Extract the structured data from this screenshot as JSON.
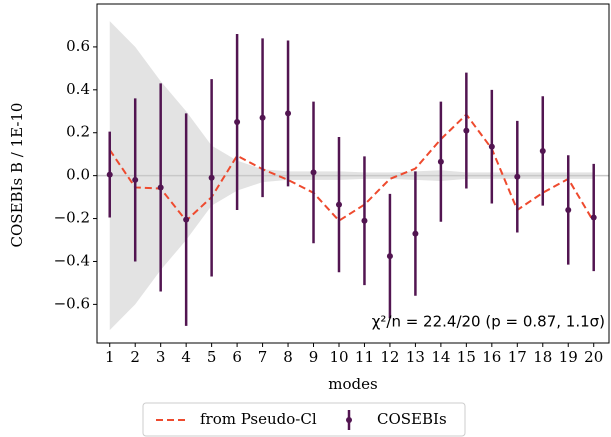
{
  "chart_data": {
    "type": "errorbar",
    "xlabel": "modes",
    "ylabel": "COSEBIs B / 1E-10",
    "annotation": "χ²/n = 22.4/20 (p = 0.87, 1.1σ)",
    "x": [
      1,
      2,
      3,
      4,
      5,
      6,
      7,
      8,
      9,
      10,
      11,
      12,
      13,
      14,
      15,
      16,
      17,
      18,
      19,
      20
    ],
    "xlim": [
      0.5,
      20.6
    ],
    "xticks": [
      1,
      2,
      3,
      4,
      5,
      6,
      7,
      8,
      9,
      10,
      11,
      12,
      13,
      14,
      15,
      16,
      17,
      18,
      19,
      20
    ],
    "ylim": [
      -0.78,
      0.8
    ],
    "yticks": [
      {
        "value": -0.6,
        "label": "−0.6"
      },
      {
        "value": -0.4,
        "label": "−0.4"
      },
      {
        "value": -0.2,
        "label": "−0.2"
      },
      {
        "value": 0,
        "label": "0.0"
      },
      0.2,
      0.4,
      0.6
    ],
    "band": {
      "color": "#e3e3e3",
      "values": [
        0.72,
        0.6,
        0.44,
        0.3,
        0.14,
        0.07,
        0.03,
        0.02,
        0.02,
        0.02,
        0.015,
        0.015,
        0.02,
        0.025,
        0.015,
        0.015,
        0.015,
        0.015,
        0.015,
        0.015
      ]
    },
    "zero_line": true,
    "series": [
      {
        "name": "from Pseudo-Cl",
        "color": "#ee4a2e",
        "style": "dashed",
        "values": [
          0.12,
          -0.055,
          -0.06,
          -0.21,
          -0.1,
          0.093,
          0.03,
          -0.02,
          -0.08,
          -0.21,
          -0.135,
          -0.015,
          0.033,
          0.17,
          0.285,
          0.125,
          -0.16,
          -0.08,
          -0.015,
          -0.215
        ]
      },
      {
        "name": "COSEBIs",
        "color": "#521551",
        "style": "errorbar",
        "values": [
          0.005,
          -0.02,
          -0.055,
          -0.205,
          -0.01,
          0.25,
          0.27,
          0.29,
          0.015,
          -0.135,
          -0.21,
          -0.375,
          -0.27,
          0.065,
          0.21,
          0.135,
          -0.005,
          0.115,
          -0.16,
          -0.195
        ],
        "errors": [
          0.2,
          0.38,
          0.485,
          0.495,
          0.46,
          0.41,
          0.37,
          0.34,
          0.33,
          0.315,
          0.3,
          0.29,
          0.29,
          0.28,
          0.27,
          0.265,
          0.26,
          0.255,
          0.255,
          0.25
        ]
      }
    ],
    "legend": "bottom"
  }
}
